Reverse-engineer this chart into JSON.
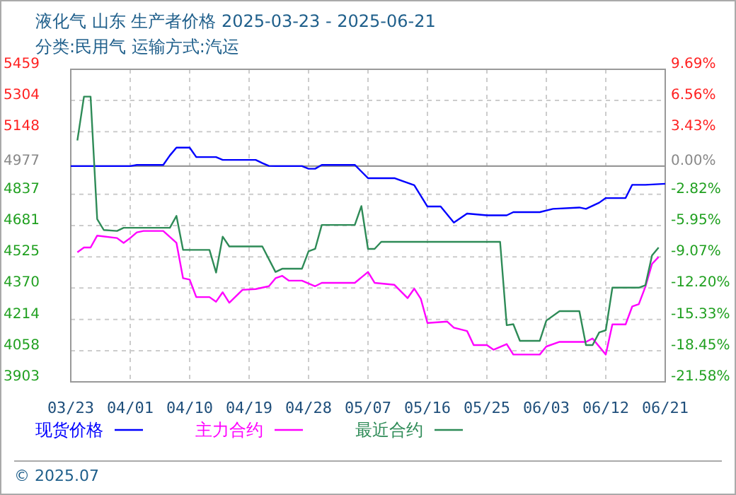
{
  "chart_data": {
    "type": "line",
    "title": "液化气 山东 生产者价格 2025-03-23 - 2025-06-21",
    "subtitle": "分类:民用气 运输方式:汽运",
    "annotations": [
      "© 2025.07"
    ],
    "xlim": [
      "2025-03-23",
      "2025-06-21"
    ],
    "xticks": [
      {
        "value": "2025-03-23",
        "label": "03/23"
      },
      {
        "value": "2025-04-01",
        "label": "04/01"
      },
      {
        "value": "2025-04-10",
        "label": "04/10"
      },
      {
        "value": "2025-04-19",
        "label": "04/19"
      },
      {
        "value": "2025-04-28",
        "label": "04/28"
      },
      {
        "value": "2025-05-07",
        "label": "05/07"
      },
      {
        "value": "2025-05-16",
        "label": "05/16"
      },
      {
        "value": "2025-05-25",
        "label": "05/25"
      },
      {
        "value": "2025-06-03",
        "label": "06/03"
      },
      {
        "value": "2025-06-12",
        "label": "06/12"
      },
      {
        "value": "2025-06-21",
        "label": "06/21"
      }
    ],
    "ylim": [
      3903,
      5459
    ],
    "yticks": [
      5459,
      5304,
      5148,
      4977,
      4837,
      4681,
      4525,
      4370,
      4214,
      4058,
      3903
    ],
    "y2lim": [
      -21.58,
      9.69
    ],
    "y2ticks": [
      {
        "value": 9.69,
        "label": "9.69%"
      },
      {
        "value": 6.56,
        "label": "6.56%"
      },
      {
        "value": 3.43,
        "label": "3.43%"
      },
      {
        "value": 0,
        "label": "0.00%"
      },
      {
        "value": -2.82,
        "label": "-2.82%"
      },
      {
        "value": -5.95,
        "label": "-5.95%"
      },
      {
        "value": -9.07,
        "label": "-9.07%"
      },
      {
        "value": -12.2,
        "label": "-12.20%"
      },
      {
        "value": -15.33,
        "label": "-15.33%"
      },
      {
        "value": -18.45,
        "label": "-18.45%"
      },
      {
        "value": -21.58,
        "label": "-21.58%"
      }
    ],
    "grid": true,
    "legend": "bottom",
    "marker": "none",
    "line_style": "solid",
    "ref_lines": [
      {
        "axis": "y",
        "value": 4977,
        "color": "#999999"
      }
    ],
    "series": [
      {
        "name": "现货价格",
        "color": "#0000ff",
        "x": [
          "2025-03-23",
          "2025-04-01",
          "2025-04-02",
          "2025-04-06",
          "2025-04-07",
          "2025-04-08",
          "2025-04-10",
          "2025-04-11",
          "2025-04-14",
          "2025-04-15",
          "2025-04-20",
          "2025-04-21",
          "2025-04-22",
          "2025-04-23",
          "2025-04-27",
          "2025-04-28",
          "2025-04-29",
          "2025-04-30",
          "2025-05-05",
          "2025-05-07",
          "2025-05-11",
          "2025-05-14",
          "2025-05-16",
          "2025-05-18",
          "2025-05-20",
          "2025-05-22",
          "2025-05-25",
          "2025-05-28",
          "2025-05-29",
          "2025-06-02",
          "2025-06-04",
          "2025-06-08",
          "2025-06-09",
          "2025-06-11",
          "2025-06-12",
          "2025-06-15",
          "2025-06-16",
          "2025-06-18",
          "2025-06-21"
        ],
        "values": [
          4977,
          4977,
          4983,
          4983,
          5030,
          5069,
          5069,
          5022,
          5022,
          5008,
          5008,
          4992,
          4978,
          4977,
          4977,
          4964,
          4964,
          4983,
          4983,
          4917,
          4917,
          4882,
          4776,
          4776,
          4696,
          4741,
          4732,
          4732,
          4748,
          4748,
          4764,
          4771,
          4764,
          4795,
          4818,
          4818,
          4884,
          4884,
          4889
        ]
      },
      {
        "name": "主力合约",
        "color": "#ff00ff",
        "x": [
          "2025-03-24",
          "2025-03-25",
          "2025-03-26",
          "2025-03-27",
          "2025-03-30",
          "2025-03-31",
          "2025-04-01",
          "2025-04-02",
          "2025-04-03",
          "2025-04-06",
          "2025-04-08",
          "2025-04-09",
          "2025-04-10",
          "2025-04-11",
          "2025-04-13",
          "2025-04-14",
          "2025-04-15",
          "2025-04-16",
          "2025-04-18",
          "2025-04-20",
          "2025-04-22",
          "2025-04-23",
          "2025-04-24",
          "2025-04-25",
          "2025-04-27",
          "2025-04-29",
          "2025-04-30",
          "2025-05-05",
          "2025-05-07",
          "2025-05-08",
          "2025-05-11",
          "2025-05-13",
          "2025-05-14",
          "2025-05-15",
          "2025-05-16",
          "2025-05-19",
          "2025-05-20",
          "2025-05-22",
          "2025-05-23",
          "2025-05-25",
          "2025-05-26",
          "2025-05-28",
          "2025-05-29",
          "2025-06-02",
          "2025-06-03",
          "2025-06-05",
          "2025-06-09",
          "2025-06-10",
          "2025-06-12",
          "2025-06-13",
          "2025-06-15",
          "2025-06-16",
          "2025-06-17",
          "2025-06-18",
          "2025-06-19",
          "2025-06-20"
        ],
        "values": [
          4548,
          4572,
          4572,
          4631,
          4619,
          4595,
          4619,
          4647,
          4654,
          4654,
          4595,
          4419,
          4412,
          4325,
          4325,
          4302,
          4349,
          4297,
          4361,
          4365,
          4379,
          4419,
          4431,
          4407,
          4407,
          4379,
          4396,
          4396,
          4450,
          4396,
          4386,
          4320,
          4367,
          4316,
          4196,
          4203,
          4173,
          4156,
          4086,
          4086,
          4063,
          4091,
          4039,
          4039,
          4079,
          4102,
          4102,
          4119,
          4039,
          4189,
          4189,
          4278,
          4290,
          4377,
          4490,
          4525
        ]
      },
      {
        "name": "最近合约",
        "color": "#2e8b57",
        "x": [
          "2025-03-24",
          "2025-03-25",
          "2025-03-26",
          "2025-03-27",
          "2025-03-28",
          "2025-03-30",
          "2025-03-31",
          "2025-04-07",
          "2025-04-08",
          "2025-04-09",
          "2025-04-13",
          "2025-04-14",
          "2025-04-15",
          "2025-04-16",
          "2025-04-21",
          "2025-04-23",
          "2025-04-24",
          "2025-04-27",
          "2025-04-28",
          "2025-04-29",
          "2025-04-30",
          "2025-05-05",
          "2025-05-06",
          "2025-05-07",
          "2025-05-08",
          "2025-05-09",
          "2025-05-27",
          "2025-05-28",
          "2025-05-29",
          "2025-05-30",
          "2025-06-02",
          "2025-06-03",
          "2025-06-05",
          "2025-06-08",
          "2025-06-09",
          "2025-06-10",
          "2025-06-11",
          "2025-06-12",
          "2025-06-13",
          "2025-06-17",
          "2025-06-18",
          "2025-06-19",
          "2025-06-20"
        ],
        "values": [
          5105,
          5323,
          5323,
          4713,
          4659,
          4654,
          4670,
          4670,
          4729,
          4560,
          4560,
          4447,
          4626,
          4577,
          4577,
          4450,
          4466,
          4466,
          4553,
          4565,
          4684,
          4684,
          4778,
          4565,
          4565,
          4600,
          4600,
          4185,
          4190,
          4107,
          4107,
          4208,
          4255,
          4255,
          4086,
          4086,
          4149,
          4160,
          4372,
          4372,
          4384,
          4532,
          4572
        ]
      }
    ]
  }
}
